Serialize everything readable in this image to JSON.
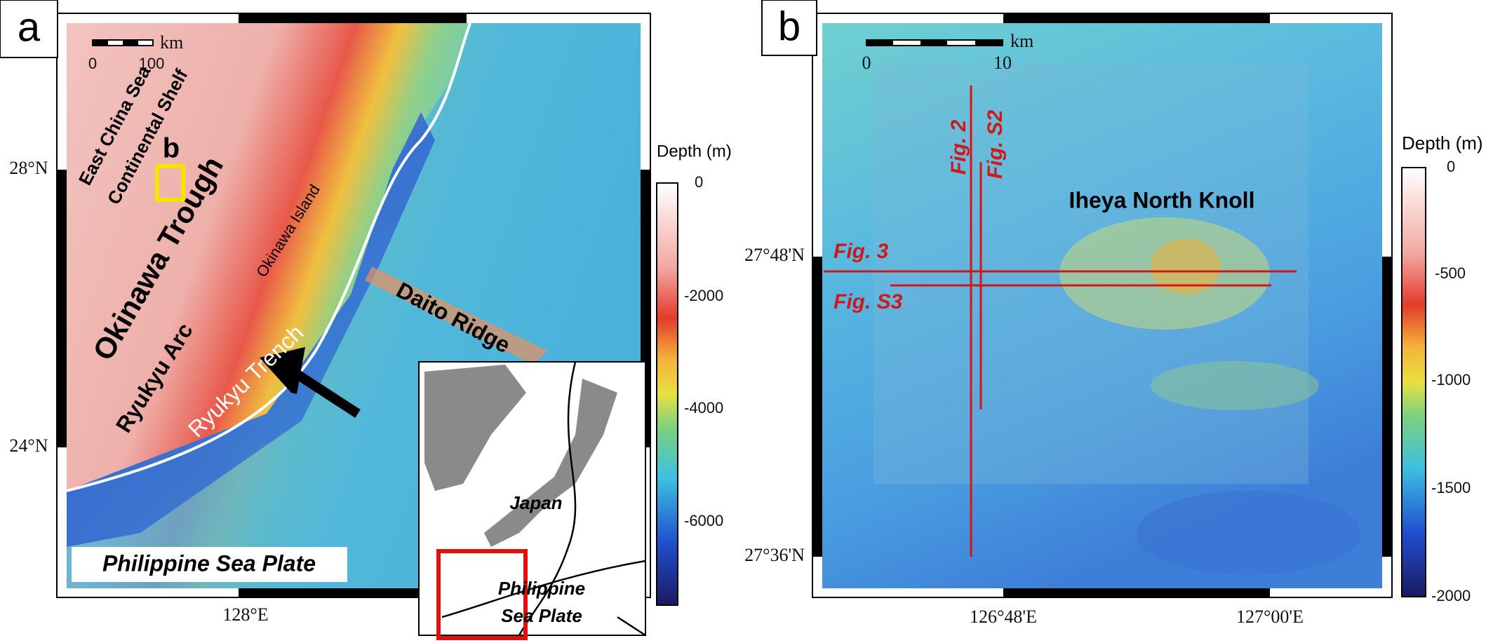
{
  "panel_a": {
    "label": "a",
    "scale_bar": {
      "zero": "0",
      "max": "100",
      "unit": "km"
    },
    "labels": {
      "east_china_sea": "East China Sea",
      "continental_shelf": "Continental Shelf",
      "b_marker": "b",
      "okinawa_trough": "Okinawa Trough",
      "okinawa_island": "Okinawa Island",
      "ryukyu_arc": "Ryukyu Arc",
      "ryukyu_trench": "Ryukyu Trench",
      "daito_ridge": "Daito Ridge",
      "philippine_sea_plate": "Philippine Sea Plate"
    },
    "inset": {
      "japan": "Japan",
      "plate_line1": "Philippine",
      "plate_line2": "Sea Plate"
    },
    "lat_ticks": [
      "28°N",
      "24°N"
    ],
    "lon_ticks": [
      "128°E"
    ],
    "colorbar": {
      "title": "Depth (m)",
      "ticks": [
        "0",
        "-2000",
        "-4000",
        "-6000"
      ]
    }
  },
  "panel_b": {
    "label": "b",
    "scale_bar": {
      "zero": "0",
      "max": "10",
      "unit": "km"
    },
    "labels": {
      "fig2": "Fig. 2",
      "figs2": "Fig. S2",
      "knoll": "Iheya North Knoll",
      "fig3": "Fig. 3",
      "figs3": "Fig. S3"
    },
    "lat_ticks": [
      "27°48'N",
      "27°36'N"
    ],
    "lon_ticks": [
      "126°48'E",
      "127°00'E"
    ],
    "colorbar": {
      "title": "Depth (m)",
      "ticks": [
        "0",
        "-500",
        "-1000",
        "-1500",
        "-2000"
      ]
    }
  }
}
